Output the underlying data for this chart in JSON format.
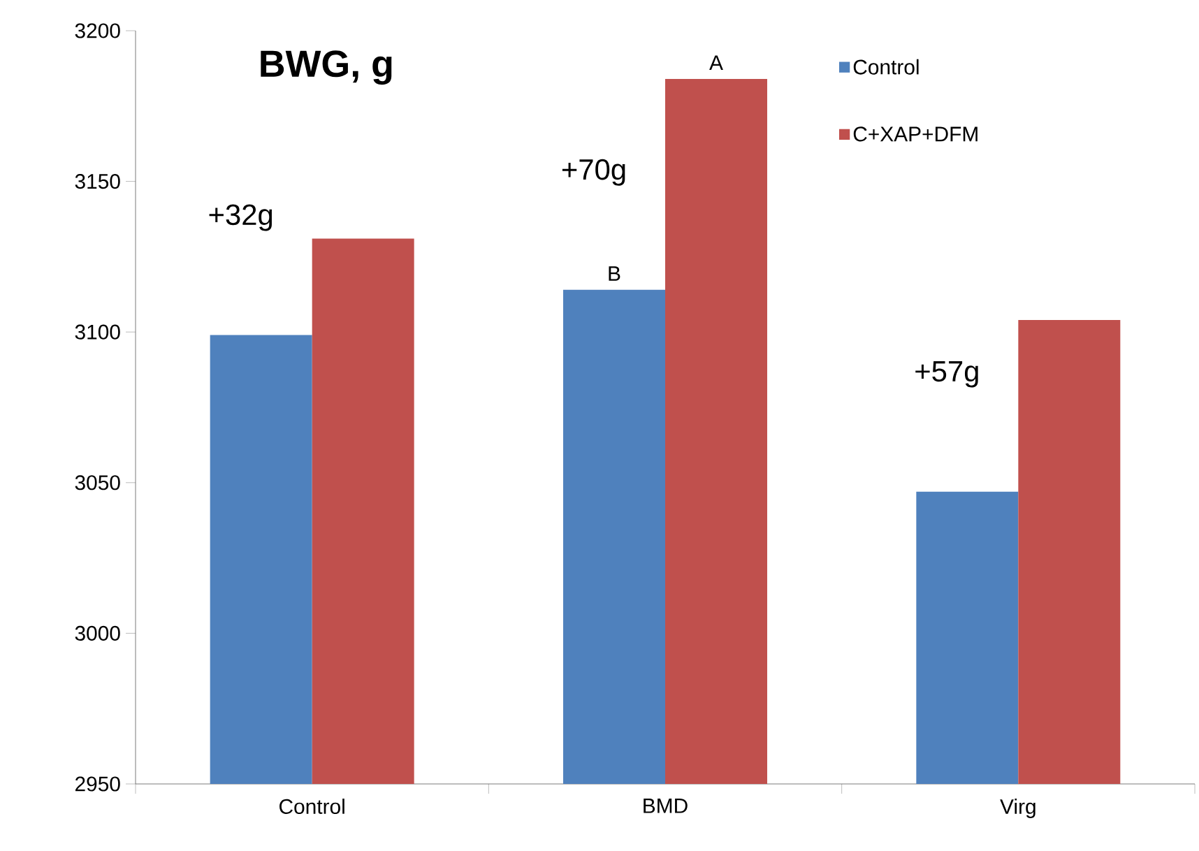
{
  "chart_data": {
    "type": "bar",
    "title": "BWG, g",
    "categories": [
      "Control",
      "BMD",
      "Virg"
    ],
    "series": [
      {
        "name": "Control",
        "color": "#4f81bd",
        "values": [
          3099,
          3114,
          3047
        ],
        "value_labels": [
          null,
          "B",
          null
        ]
      },
      {
        "name": "C+XAP+DFM",
        "color": "#c0504d",
        "values": [
          3131,
          3184,
          3104
        ],
        "value_labels": [
          null,
          "A",
          null
        ]
      }
    ],
    "ylim": [
      2950,
      3200
    ],
    "yticks": [
      2950,
      3000,
      3050,
      3100,
      3150,
      3200
    ],
    "annotations": [
      "+32g",
      "+70g",
      "+57g"
    ],
    "legend": "top right"
  }
}
